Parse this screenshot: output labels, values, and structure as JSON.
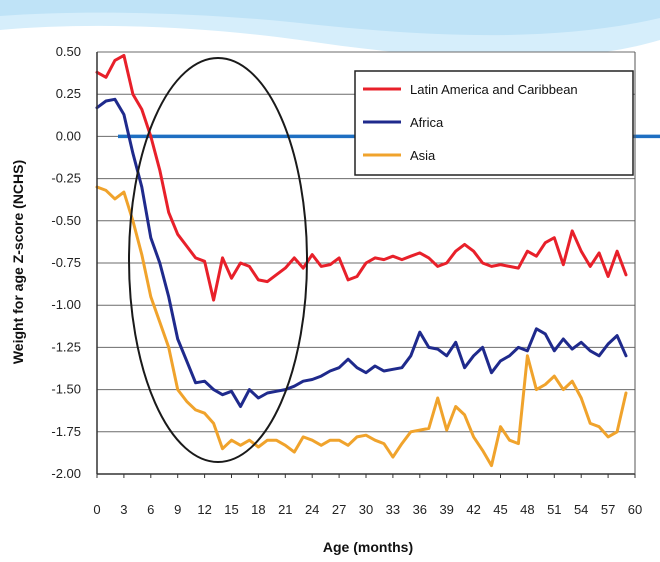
{
  "chart_data": {
    "type": "line",
    "title": "",
    "xlabel": "Age (months)",
    "ylabel": "Weight for age Z-score (NCHS)",
    "xlim": [
      0,
      60
    ],
    "ylim": [
      -2.0,
      0.5
    ],
    "x_ticks": [
      0,
      3,
      6,
      9,
      12,
      15,
      18,
      21,
      24,
      27,
      30,
      33,
      36,
      39,
      42,
      45,
      48,
      51,
      54,
      57,
      60
    ],
    "y_ticks": [
      0.5,
      0.25,
      0.0,
      -0.25,
      -0.5,
      -0.75,
      -1.0,
      -1.25,
      -1.5,
      -1.75,
      -2.0
    ],
    "y_tick_labels": [
      "0.50",
      "0.25",
      "0.00",
      "-0.25",
      "-0.50",
      "-0.75",
      "-1.00",
      "-1.25",
      "-1.50",
      "-1.75",
      "-2.00"
    ],
    "grid": "horizontal",
    "legend_position": "top-right",
    "x": [
      0,
      1,
      2,
      3,
      4,
      5,
      6,
      7,
      8,
      9,
      10,
      11,
      12,
      13,
      14,
      15,
      16,
      17,
      18,
      19,
      20,
      21,
      22,
      23,
      24,
      25,
      26,
      27,
      28,
      29,
      30,
      31,
      32,
      33,
      34,
      35,
      36,
      37,
      38,
      39,
      40,
      41,
      42,
      43,
      44,
      45,
      46,
      47,
      48,
      49,
      50,
      51,
      52,
      53,
      54,
      55,
      56,
      57,
      58,
      59
    ],
    "series": [
      {
        "name": "Latin America and Caribbean",
        "color": "#e8202a",
        "values": [
          0.38,
          0.35,
          0.45,
          0.48,
          0.25,
          0.16,
          0.0,
          -0.2,
          -0.45,
          -0.58,
          -0.65,
          -0.72,
          -0.74,
          -0.97,
          -0.72,
          -0.84,
          -0.75,
          -0.77,
          -0.85,
          -0.86,
          -0.82,
          -0.78,
          -0.72,
          -0.78,
          -0.7,
          -0.77,
          -0.76,
          -0.72,
          -0.85,
          -0.83,
          -0.75,
          -0.72,
          -0.73,
          -0.71,
          -0.73,
          -0.71,
          -0.69,
          -0.72,
          -0.77,
          -0.75,
          -0.68,
          -0.64,
          -0.68,
          -0.75,
          -0.77,
          -0.76,
          -0.77,
          -0.78,
          -0.68,
          -0.71,
          -0.63,
          -0.6,
          -0.76,
          -0.56,
          -0.68,
          -0.77,
          -0.69,
          -0.83,
          -0.68,
          -0.82
        ]
      },
      {
        "name": "Africa",
        "color": "#1f2a8c",
        "values": [
          0.17,
          0.21,
          0.22,
          0.13,
          -0.1,
          -0.3,
          -0.6,
          -0.75,
          -0.95,
          -1.2,
          -1.33,
          -1.46,
          -1.45,
          -1.5,
          -1.53,
          -1.51,
          -1.6,
          -1.5,
          -1.55,
          -1.52,
          -1.51,
          -1.5,
          -1.48,
          -1.45,
          -1.44,
          -1.42,
          -1.39,
          -1.37,
          -1.32,
          -1.37,
          -1.4,
          -1.36,
          -1.39,
          -1.38,
          -1.37,
          -1.3,
          -1.16,
          -1.25,
          -1.26,
          -1.3,
          -1.22,
          -1.37,
          -1.3,
          -1.25,
          -1.4,
          -1.33,
          -1.3,
          -1.25,
          -1.27,
          -1.14,
          -1.17,
          -1.27,
          -1.2,
          -1.26,
          -1.22,
          -1.27,
          -1.3,
          -1.23,
          -1.18,
          -1.3
        ]
      },
      {
        "name": "Asia",
        "color": "#f0a32c",
        "values": [
          -0.3,
          -0.32,
          -0.37,
          -0.33,
          -0.5,
          -0.7,
          -0.95,
          -1.1,
          -1.25,
          -1.5,
          -1.57,
          -1.62,
          -1.64,
          -1.7,
          -1.85,
          -1.8,
          -1.83,
          -1.8,
          -1.84,
          -1.8,
          -1.8,
          -1.83,
          -1.87,
          -1.78,
          -1.8,
          -1.83,
          -1.8,
          -1.8,
          -1.83,
          -1.78,
          -1.77,
          -1.8,
          -1.82,
          -1.9,
          -1.82,
          -1.75,
          -1.74,
          -1.73,
          -1.55,
          -1.74,
          -1.6,
          -1.65,
          -1.78,
          -1.86,
          -1.95,
          -1.72,
          -1.8,
          -1.82,
          -1.3,
          -1.5,
          -1.47,
          -1.42,
          -1.5,
          -1.45,
          -1.55,
          -1.7,
          -1.72,
          -1.78,
          -1.75,
          -1.52
        ]
      }
    ]
  },
  "decor": {
    "zero_line_color": "#1e6fc2",
    "ellipse_color": "#1a1a1a",
    "banner_color": "#bfe3f7"
  }
}
